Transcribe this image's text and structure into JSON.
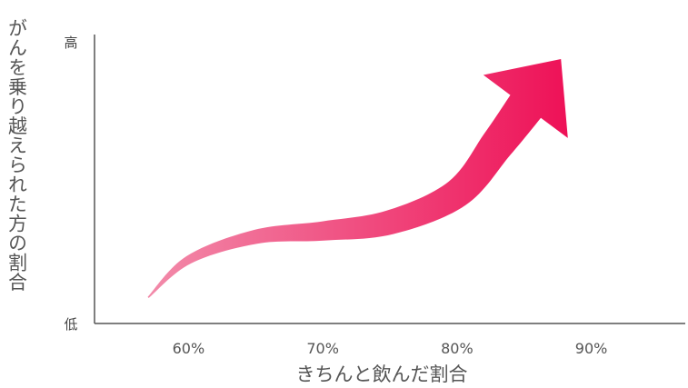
{
  "chart_data": {
    "type": "line",
    "xlabel": "きちんと飲んだ割合",
    "ylabel": "がんを乗り越えられた方の割合",
    "x_ticks": [
      "60%",
      "70%",
      "80%",
      "90%"
    ],
    "y_ticks": {
      "high": "高",
      "low": "低"
    },
    "xlim": [
      53,
      97
    ],
    "ylim": [
      0,
      100
    ],
    "series": [
      {
        "x": [
          57,
          60,
          65,
          70,
          75,
          80,
          83,
          87.5
        ],
        "y": [
          9,
          22,
          30,
          32,
          35,
          45,
          62,
          90
        ],
        "marker": "arrow"
      }
    ],
    "colors": {
      "start": "#F28BAA",
      "end": "#EE1157",
      "axis": "#555555"
    }
  }
}
